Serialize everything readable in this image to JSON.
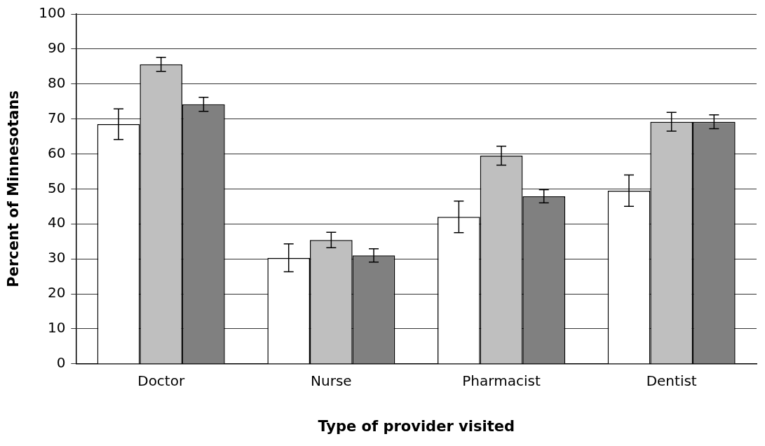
{
  "chart_data": {
    "type": "bar",
    "xlabel": "Type of provider visited",
    "ylabel": "Percent of Minnesotans",
    "categories": [
      "Doctor",
      "Nurse",
      "Pharmacist",
      "Dentist"
    ],
    "series": [
      {
        "color": "#ffffff",
        "values": [
          68.5,
          30.3,
          42,
          49.5
        ],
        "errors": [
          4.4,
          4,
          4.5,
          4.5
        ]
      },
      {
        "color": "#bfbfbf",
        "values": [
          85.6,
          35.4,
          59.5,
          69.2
        ],
        "errors": [
          2,
          2.2,
          2.7,
          2.7
        ]
      },
      {
        "color": "#808080",
        "values": [
          74.2,
          31,
          47.9,
          69.2
        ],
        "errors": [
          2,
          1.9,
          1.9,
          2
        ]
      }
    ],
    "ylim": [
      0,
      100
    ],
    "yticks": [
      0,
      10,
      20,
      30,
      40,
      50,
      60,
      70,
      80,
      90,
      100
    ],
    "grid": "y",
    "legend": false
  }
}
